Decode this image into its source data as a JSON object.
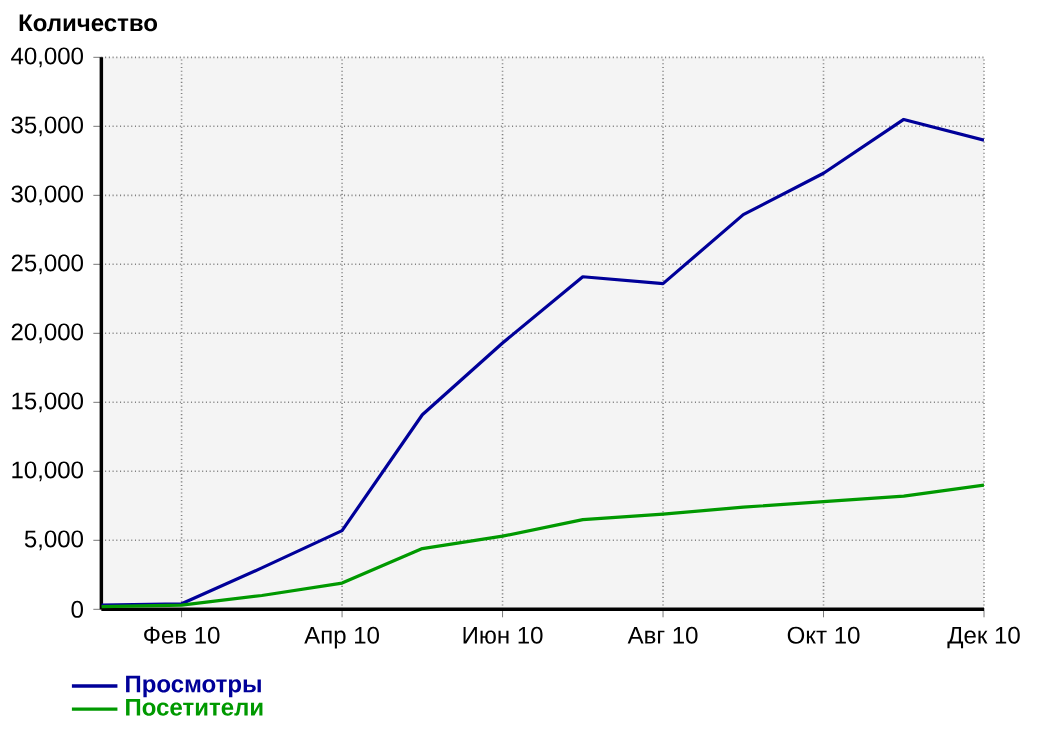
{
  "chart_data": {
    "type": "line",
    "ylabel": "Количество",
    "categories": [
      null,
      "Фев 10",
      null,
      "Апр 10",
      null,
      "Июн 10",
      null,
      "Авг 10",
      null,
      "Окт 10",
      null,
      "Дек 10"
    ],
    "series": [
      {
        "name": "Просмотры",
        "color": "#000099",
        "values": [
          300,
          400,
          3000,
          5700,
          14100,
          19300,
          24100,
          23600,
          28600,
          31600,
          35500,
          34000
        ]
      },
      {
        "name": "Посетители",
        "color": "#009900",
        "values": [
          200,
          300,
          1000,
          1900,
          4400,
          5300,
          6500,
          6900,
          7400,
          7800,
          8200,
          9000
        ]
      }
    ],
    "ylim": [
      0,
      40000
    ],
    "yticks": [
      0,
      {
        "value": 5000,
        "label": "5,000"
      },
      {
        "value": 10000,
        "label": "10,000"
      },
      {
        "value": 15000,
        "label": "15,000"
      },
      {
        "value": 20000,
        "label": "20,000"
      },
      {
        "value": 25000,
        "label": "25,000"
      },
      {
        "value": 30000,
        "label": "30,000"
      },
      {
        "value": 35000,
        "label": "35,000"
      },
      {
        "value": 40000,
        "label": "40,000"
      }
    ],
    "grid": true,
    "legend": "bottom left",
    "marker": "none",
    "line_style": "solid"
  }
}
